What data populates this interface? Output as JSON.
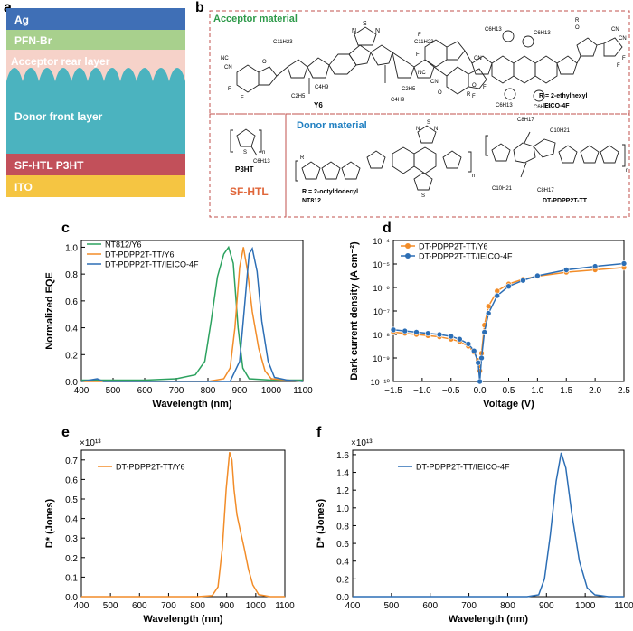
{
  "panels": {
    "a": "a",
    "b": "b",
    "c": "c",
    "d": "d",
    "e": "e",
    "f": "f"
  },
  "device_stack": {
    "layers": [
      {
        "label": "Ag",
        "color": "#3f6fb6"
      },
      {
        "label": "PFN-Br",
        "color": "#a8d08d"
      },
      {
        "label": "Acceptor rear layer",
        "color": "#f6d2c9"
      },
      {
        "label": "Donor front layer",
        "color": "#4bb3bf"
      },
      {
        "label": "SF-HTL P3HT",
        "color": "#c2505a"
      },
      {
        "label": "ITO",
        "color": "#f5c542"
      }
    ]
  },
  "materials": {
    "acceptor_title": "Acceptor material",
    "donor_title": "Donor material",
    "acceptor_title_color": "#2e9a4a",
    "donor_title_color": "#1f7fc1",
    "sf_htl_color": "#e0663a",
    "y6": "Y6",
    "ieico": "IEICO-4F",
    "ieico_r": "R = 2-ethylhexyl",
    "p3ht": "P3HT",
    "sf_htl": "SF-HTL",
    "nt812": "NT812",
    "nt812_r": "R = 2-octyldodecyl",
    "dtpdpp": "DT-PDPP2T-TT",
    "sub_c11h23": "C11H23",
    "sub_c4h9": "C4H9",
    "sub_c2h5": "C2H5",
    "sub_c6h13": "C6H13",
    "sub_c10h21": "C10H21",
    "sub_c8h17": "C8H17",
    "sub_r": "R",
    "sub_n": "n",
    "sub_s": "S",
    "sub_n_atom": "N",
    "sub_f": "F",
    "sub_cn": "CN",
    "sub_nc": "NC",
    "sub_o": "O"
  },
  "chart_data": [
    {
      "id": "c",
      "type": "line",
      "title": "",
      "xlabel": "Wavelength (nm)",
      "ylabel": "Normalized EQE",
      "xlim": [
        400,
        1100
      ],
      "ylim": [
        0,
        1.05
      ],
      "xticks": [
        400,
        500,
        600,
        700,
        800,
        900,
        1000,
        1100
      ],
      "yticks": [
        0.0,
        0.2,
        0.4,
        0.6,
        0.8,
        1.0
      ],
      "xtick_labels": [
        "400",
        "500",
        "600",
        "700",
        "800",
        "900",
        "1000",
        "1100"
      ],
      "ytick_labels": [
        "0.0",
        "0.2",
        "0.4",
        "0.6",
        "0.8",
        "1.0"
      ],
      "legend_position": "top-left",
      "series": [
        {
          "name": "NT812/Y6",
          "color": "#2ca25f",
          "x": [
            400,
            500,
            600,
            700,
            760,
            790,
            810,
            830,
            850,
            865,
            880,
            895,
            910,
            930,
            1000,
            1100
          ],
          "y": [
            0.01,
            0.01,
            0.01,
            0.02,
            0.05,
            0.15,
            0.45,
            0.78,
            0.95,
            1.0,
            0.88,
            0.4,
            0.1,
            0.02,
            0.01,
            0.01
          ]
        },
        {
          "name": "DT-PDPP2T-TT/Y6",
          "color": "#f28c28",
          "x": [
            400,
            450,
            500,
            600,
            800,
            850,
            870,
            885,
            900,
            912,
            925,
            940,
            960,
            980,
            1000,
            1100
          ],
          "y": [
            0.0,
            0.0,
            0.0,
            0.0,
            0.0,
            0.02,
            0.1,
            0.4,
            0.85,
            1.0,
            0.82,
            0.52,
            0.25,
            0.08,
            0.02,
            0.0
          ]
        },
        {
          "name": "DT-PDPP2T-TT/IEICO-4F",
          "color": "#2c6eb5",
          "x": [
            400,
            450,
            470,
            500,
            800,
            870,
            900,
            915,
            930,
            940,
            955,
            970,
            990,
            1010,
            1050,
            1100
          ],
          "y": [
            0.0,
            0.02,
            0.0,
            0.0,
            0.0,
            0.0,
            0.15,
            0.55,
            0.95,
            0.99,
            0.82,
            0.45,
            0.15,
            0.03,
            0.01,
            0.0
          ]
        }
      ]
    },
    {
      "id": "d",
      "type": "line",
      "scale_y": "log",
      "xlabel": "Voltage (V)",
      "ylabel": "Dark current density (A cm⁻²)",
      "xlim": [
        -1.5,
        2.5
      ],
      "ylim_exp": [
        -10,
        -4
      ],
      "xticks": [
        -1.5,
        -1.0,
        -0.5,
        0.0,
        0.5,
        1.0,
        1.5,
        2.0,
        2.5
      ],
      "xtick_labels": [
        "−1.5",
        "−1.0",
        "−0.5",
        "0.0",
        "0.5",
        "1.0",
        "1.5",
        "2.0",
        "2.5"
      ],
      "ytick_labels": [
        "10⁻¹⁰",
        "10⁻⁹",
        "10⁻⁸",
        "10⁻⁷",
        "10⁻⁶",
        "10⁻⁵",
        "10⁻⁴"
      ],
      "legend_position": "top-left",
      "series": [
        {
          "name": "DT-PDPP2T-TT/Y6",
          "color": "#f28c28",
          "x": [
            -1.5,
            -1.3,
            -1.1,
            -0.9,
            -0.7,
            -0.5,
            -0.35,
            -0.2,
            -0.1,
            -0.03,
            0.0,
            0.03,
            0.08,
            0.15,
            0.3,
            0.5,
            0.75,
            1.0,
            1.5,
            2.0,
            2.5
          ],
          "logy": [
            -7.9,
            -7.95,
            -8.0,
            -8.05,
            -8.1,
            -8.2,
            -8.3,
            -8.5,
            -8.75,
            -9.1,
            -9.55,
            -8.8,
            -7.6,
            -6.8,
            -6.15,
            -5.85,
            -5.65,
            -5.52,
            -5.35,
            -5.25,
            -5.15
          ]
        },
        {
          "name": "DT-PDPP2T-TT/IEICO-4F",
          "color": "#2c6eb5",
          "x": [
            -1.5,
            -1.3,
            -1.1,
            -0.9,
            -0.7,
            -0.5,
            -0.35,
            -0.2,
            -0.1,
            -0.03,
            0.0,
            0.03,
            0.08,
            0.15,
            0.3,
            0.5,
            0.75,
            1.0,
            1.5,
            2.0,
            2.5
          ],
          "logy": [
            -7.8,
            -7.85,
            -7.9,
            -7.95,
            -8.0,
            -8.08,
            -8.2,
            -8.4,
            -8.7,
            -9.2,
            -10.0,
            -9.0,
            -7.9,
            -7.1,
            -6.35,
            -5.95,
            -5.7,
            -5.5,
            -5.25,
            -5.1,
            -4.98
          ]
        }
      ]
    },
    {
      "id": "e",
      "type": "line",
      "xlabel": "Wavelength (nm)",
      "ylabel": "D* (Jones)",
      "y_multiplier": "×10¹³",
      "xlim": [
        400,
        1100
      ],
      "ylim": [
        0,
        0.75
      ],
      "xticks": [
        400,
        500,
        600,
        700,
        800,
        900,
        1000,
        1100
      ],
      "xtick_labels": [
        "400",
        "500",
        "600",
        "700",
        "800",
        "900",
        "1000",
        "1100"
      ],
      "yticks": [
        0.0,
        0.1,
        0.2,
        0.3,
        0.4,
        0.5,
        0.6,
        0.7
      ],
      "ytick_labels": [
        "0.0",
        "0.1",
        "0.2",
        "0.3",
        "0.4",
        "0.5",
        "0.6",
        "0.7"
      ],
      "legend_position": "top-left",
      "series": [
        {
          "name": "DT-PDPP2T-TT/Y6",
          "color": "#f28c28",
          "x": [
            400,
            500,
            600,
            700,
            800,
            850,
            870,
            885,
            898,
            910,
            918,
            925,
            935,
            945,
            960,
            975,
            990,
            1010,
            1050,
            1100
          ],
          "y": [
            0,
            0,
            0,
            0,
            0,
            0.005,
            0.05,
            0.25,
            0.55,
            0.74,
            0.7,
            0.55,
            0.42,
            0.35,
            0.25,
            0.14,
            0.06,
            0.01,
            0.0,
            0.0
          ]
        }
      ]
    },
    {
      "id": "f",
      "type": "line",
      "xlabel": "Wavelength (nm)",
      "ylabel": "D* (Jones)",
      "y_multiplier": "×10¹³",
      "xlim": [
        400,
        1100
      ],
      "ylim": [
        0,
        1.65
      ],
      "xticks": [
        400,
        500,
        600,
        700,
        800,
        900,
        1000,
        1100
      ],
      "xtick_labels": [
        "400",
        "500",
        "600",
        "700",
        "800",
        "900",
        "1000",
        "1100"
      ],
      "yticks": [
        0.0,
        0.2,
        0.4,
        0.6,
        0.8,
        1.0,
        1.2,
        1.4,
        1.6
      ],
      "ytick_labels": [
        "0.0",
        "0.2",
        "0.4",
        "0.6",
        "0.8",
        "1.0",
        "1.2",
        "1.4",
        "1.6"
      ],
      "legend_position": "top-left",
      "series": [
        {
          "name": "DT-PDPP2T-TT/IEICO-4F",
          "color": "#2c6eb5",
          "x": [
            400,
            500,
            700,
            850,
            880,
            895,
            910,
            925,
            938,
            950,
            965,
            985,
            1005,
            1025,
            1060,
            1100
          ],
          "y": [
            0,
            0,
            0,
            0,
            0.02,
            0.2,
            0.7,
            1.3,
            1.62,
            1.45,
            0.95,
            0.4,
            0.1,
            0.02,
            0.0,
            0.0
          ]
        }
      ]
    }
  ]
}
